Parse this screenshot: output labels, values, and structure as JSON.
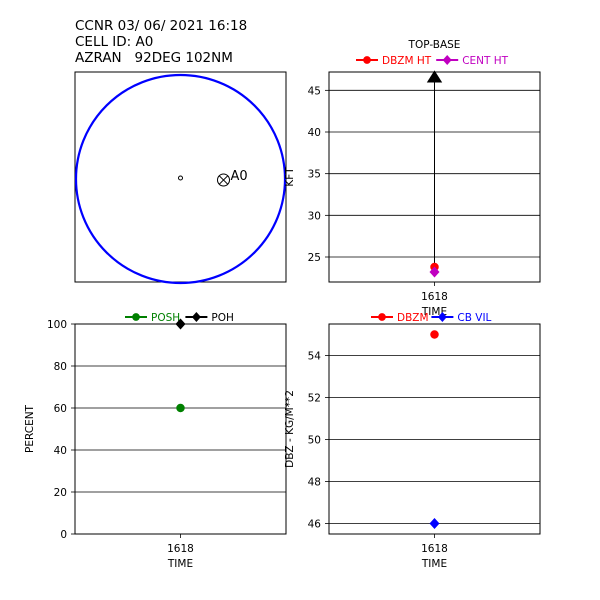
{
  "header": {
    "line1": "CCNR 03/ 06/ 2021 16:18",
    "line2": "CELL ID: A0",
    "line3": "AZRAN   92DEG 102NM"
  },
  "colors": {
    "circle": "#0000ff",
    "dbzm": "#ff0000",
    "cent": "#c000c0",
    "posh": "#008000",
    "poh": "#000000",
    "cbvil": "#0000ff"
  },
  "chart_data": [
    {
      "type": "map",
      "cell_label": "A0",
      "cell_marker": "circle-x",
      "radar_marker": "small-circle",
      "range_ring": true
    },
    {
      "type": "line",
      "title": "TOP-BASE",
      "ylabel": "KFT",
      "xlabel": "TIME",
      "categories": [
        "1618"
      ],
      "ylim": [
        22,
        47.2
      ],
      "yticks": [
        25,
        30,
        35,
        40,
        45
      ],
      "legend_position": "top",
      "grid": "horizontal",
      "series": [
        {
          "name": "DBZM HT",
          "marker": "circle",
          "color": "#ff0000",
          "values": [
            23.8
          ]
        },
        {
          "name": "CENT HT",
          "marker": "diamond",
          "color": "#c000c0",
          "values": [
            23.2
          ]
        }
      ],
      "extra_points": [
        {
          "marker": "triangle-up",
          "color": "#000000",
          "value": 46.6
        }
      ],
      "vertical_line": {
        "from": 23.2,
        "to": 46.6
      }
    },
    {
      "type": "line",
      "title": "",
      "ylabel": "PERCENT",
      "xlabel": "TIME",
      "categories": [
        "1618"
      ],
      "ylim": [
        0,
        100
      ],
      "yticks": [
        0,
        20,
        40,
        60,
        80,
        100
      ],
      "legend_position": "top",
      "grid": "horizontal",
      "series": [
        {
          "name": "POSH",
          "marker": "circle",
          "color": "#008000",
          "values": [
            60
          ]
        },
        {
          "name": "POH",
          "marker": "diamond",
          "color": "#000000",
          "values": [
            100
          ]
        }
      ]
    },
    {
      "type": "line",
      "title": "",
      "ylabel": "DBZ - KG/M**2",
      "xlabel": "TIME",
      "categories": [
        "1618"
      ],
      "ylim": [
        45.5,
        55.5
      ],
      "yticks": [
        46,
        48,
        50,
        52,
        54
      ],
      "legend_position": "top",
      "grid": "horizontal",
      "series": [
        {
          "name": "DBZM",
          "marker": "circle",
          "color": "#ff0000",
          "values": [
            55
          ]
        },
        {
          "name": "CB VIL",
          "marker": "diamond",
          "color": "#0000ff",
          "values": [
            46
          ]
        }
      ]
    }
  ]
}
